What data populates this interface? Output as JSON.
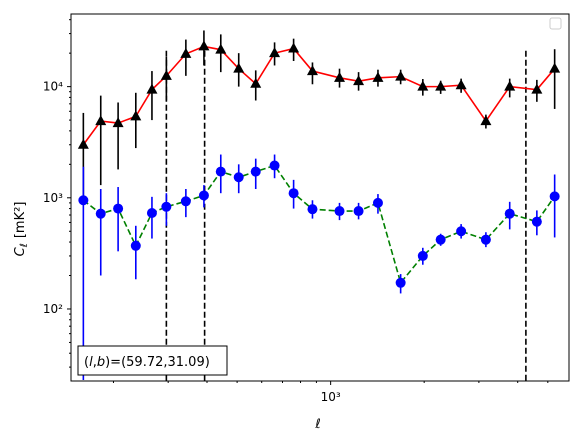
{
  "chart_data": {
    "type": "scatter",
    "title": "",
    "xlabel": "ℓ",
    "ylabel_main": "C",
    "ylabel_sub": "ℓ",
    "ylabel_unit": "[mK²]",
    "xscale": "log",
    "yscale": "log",
    "xlim": [
      146,
      5850
    ],
    "ylim": [
      22.5,
      45000
    ],
    "x_tick_labels": [
      {
        "x": 1000,
        "label": "10³"
      }
    ],
    "y_tick_labels": [
      {
        "y": 100,
        "label": "10²"
      },
      {
        "y": 1000,
        "label": "10³"
      },
      {
        "y": 10000,
        "label": "10⁴"
      }
    ],
    "vertical_lines": [
      296,
      393,
      4250
    ],
    "legend": {
      "placement": "top-right",
      "entries": []
    },
    "annotation": "(l, b)=(59.72,31.09)",
    "annotation_parts": {
      "open": "(",
      "l": "l",
      "comma": ",",
      "b": "b",
      "rest": ")=(59.72,31.09)"
    },
    "series": [
      {
        "color": "#ff0000",
        "marker": "triangle",
        "marker_color": "#000000",
        "line_style": "solid",
        "points": [
          {
            "x": 160,
            "y": 3000,
            "lo": 1000,
            "hi": 5800
          },
          {
            "x": 182,
            "y": 4900,
            "lo": 1300,
            "hi": 8300
          },
          {
            "x": 207,
            "y": 4700,
            "lo": 1800,
            "hi": 7200
          },
          {
            "x": 236,
            "y": 5400,
            "lo": 2800,
            "hi": 8800
          },
          {
            "x": 266,
            "y": 9400,
            "lo": 5000,
            "hi": 13800
          },
          {
            "x": 296,
            "y": 12500,
            "lo": 7500,
            "hi": 18500
          },
          {
            "x": 342,
            "y": 19700,
            "lo": 12500,
            "hi": 26500
          },
          {
            "x": 391,
            "y": 23000,
            "lo": 15500,
            "hi": 32000
          },
          {
            "x": 443,
            "y": 21500,
            "lo": 13500,
            "hi": 29500
          },
          {
            "x": 506,
            "y": 14500,
            "lo": 10000,
            "hi": 20000
          },
          {
            "x": 574,
            "y": 10600,
            "lo": 7500,
            "hi": 14000
          },
          {
            "x": 660,
            "y": 20000,
            "lo": 15500,
            "hi": 25000
          },
          {
            "x": 760,
            "y": 22000,
            "lo": 17000,
            "hi": 27000
          },
          {
            "x": 874,
            "y": 13800,
            "lo": 10500,
            "hi": 16500
          },
          {
            "x": 1068,
            "y": 12000,
            "lo": 9800,
            "hi": 14500
          },
          {
            "x": 1230,
            "y": 11200,
            "lo": 9200,
            "hi": 13500
          },
          {
            "x": 1420,
            "y": 12000,
            "lo": 10000,
            "hi": 14200
          },
          {
            "x": 1680,
            "y": 12300,
            "lo": 10500,
            "hi": 14200
          },
          {
            "x": 1980,
            "y": 10000,
            "lo": 8300,
            "hi": 11700
          },
          {
            "x": 2260,
            "y": 10000,
            "lo": 8600,
            "hi": 11300
          },
          {
            "x": 2630,
            "y": 10300,
            "lo": 8800,
            "hi": 11800
          },
          {
            "x": 3160,
            "y": 4900,
            "lo": 4200,
            "hi": 5600
          },
          {
            "x": 3770,
            "y": 10000,
            "lo": 8000,
            "hi": 11800
          },
          {
            "x": 4610,
            "y": 9400,
            "lo": 7300,
            "hi": 11500
          },
          {
            "x": 5260,
            "y": 14500,
            "lo": 6300,
            "hi": 21700
          }
        ]
      },
      {
        "color": "#008000",
        "marker": "circle",
        "marker_color": "#0000ff",
        "line_style": "dashed",
        "points": [
          {
            "x": 160,
            "y": 950,
            "lo": 23,
            "hi": 1900
          },
          {
            "x": 182,
            "y": 720,
            "lo": 200,
            "hi": 1200
          },
          {
            "x": 207,
            "y": 800,
            "lo": 330,
            "hi": 1250
          },
          {
            "x": 236,
            "y": 370,
            "lo": 185,
            "hi": 560
          },
          {
            "x": 266,
            "y": 730,
            "lo": 430,
            "hi": 1020
          },
          {
            "x": 296,
            "y": 830,
            "lo": 560,
            "hi": 1100
          },
          {
            "x": 342,
            "y": 930,
            "lo": 670,
            "hi": 1200
          },
          {
            "x": 391,
            "y": 1050,
            "lo": 820,
            "hi": 1300
          },
          {
            "x": 443,
            "y": 1720,
            "lo": 1100,
            "hi": 2450
          },
          {
            "x": 506,
            "y": 1530,
            "lo": 1100,
            "hi": 2000
          },
          {
            "x": 574,
            "y": 1720,
            "lo": 1200,
            "hi": 2250
          },
          {
            "x": 660,
            "y": 1950,
            "lo": 1500,
            "hi": 2450
          },
          {
            "x": 760,
            "y": 1100,
            "lo": 800,
            "hi": 1450
          },
          {
            "x": 874,
            "y": 790,
            "lo": 650,
            "hi": 950
          },
          {
            "x": 1068,
            "y": 760,
            "lo": 630,
            "hi": 900
          },
          {
            "x": 1230,
            "y": 760,
            "lo": 640,
            "hi": 900
          },
          {
            "x": 1420,
            "y": 900,
            "lo": 720,
            "hi": 1080
          },
          {
            "x": 1680,
            "y": 172,
            "lo": 138,
            "hi": 206
          },
          {
            "x": 1980,
            "y": 300,
            "lo": 250,
            "hi": 355
          },
          {
            "x": 2260,
            "y": 420,
            "lo": 370,
            "hi": 475
          },
          {
            "x": 2630,
            "y": 500,
            "lo": 430,
            "hi": 580
          },
          {
            "x": 3160,
            "y": 420,
            "lo": 360,
            "hi": 490
          },
          {
            "x": 3770,
            "y": 720,
            "lo": 520,
            "hi": 920
          },
          {
            "x": 4610,
            "y": 610,
            "lo": 460,
            "hi": 770
          },
          {
            "x": 5260,
            "y": 1030,
            "lo": 440,
            "hi": 1620
          }
        ]
      }
    ]
  }
}
